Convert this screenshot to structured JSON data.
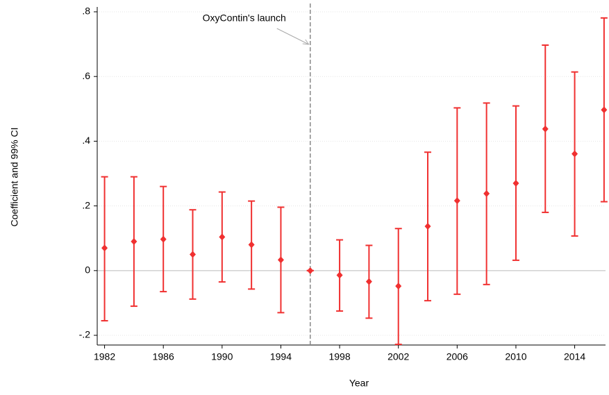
{
  "chart_data": {
    "type": "coefplot",
    "xlabel": "Year",
    "ylabel": "Coefficient and 99% CI",
    "x": [
      1982,
      1984,
      1986,
      1988,
      1990,
      1992,
      1994,
      1996,
      1998,
      2000,
      2002,
      2004,
      2006,
      2008,
      2010,
      2012,
      2014,
      2016
    ],
    "values": [
      0.07,
      0.09,
      0.097,
      0.05,
      0.104,
      0.08,
      0.033,
      0,
      -0.014,
      -0.034,
      -0.048,
      0.137,
      0.216,
      0.238,
      0.27,
      0.438,
      0.361,
      0.497
    ],
    "ci_low": [
      -0.155,
      -0.11,
      -0.065,
      -0.088,
      -0.035,
      -0.057,
      -0.13,
      0,
      -0.125,
      -0.147,
      -0.228,
      -0.093,
      -0.073,
      -0.043,
      0.032,
      0.18,
      0.107,
      0.213
    ],
    "ci_high": [
      0.29,
      0.29,
      0.26,
      0.188,
      0.243,
      0.215,
      0.196,
      0,
      0.095,
      0.078,
      0.13,
      0.366,
      0.503,
      0.518,
      0.509,
      0.697,
      0.614,
      0.781
    ],
    "color": "#f03030",
    "xlim": [
      1981.5,
      2016.1
    ],
    "xticks": [
      1982,
      1986,
      1990,
      1994,
      1998,
      2002,
      2006,
      2010,
      2014
    ],
    "ylim": [
      -0.23,
      0.815
    ],
    "yticks": [
      {
        "value": -0.2,
        "label": "-.2"
      },
      0,
      {
        "value": 0.2,
        "label": ".2"
      },
      {
        "value": 0.4,
        "label": ".4"
      },
      {
        "value": 0.6,
        "label": ".6"
      },
      {
        "value": 0.8,
        "label": ".8"
      }
    ],
    "grid": true,
    "vline": {
      "x": 1996,
      "label": "OxyContin's launch"
    }
  }
}
